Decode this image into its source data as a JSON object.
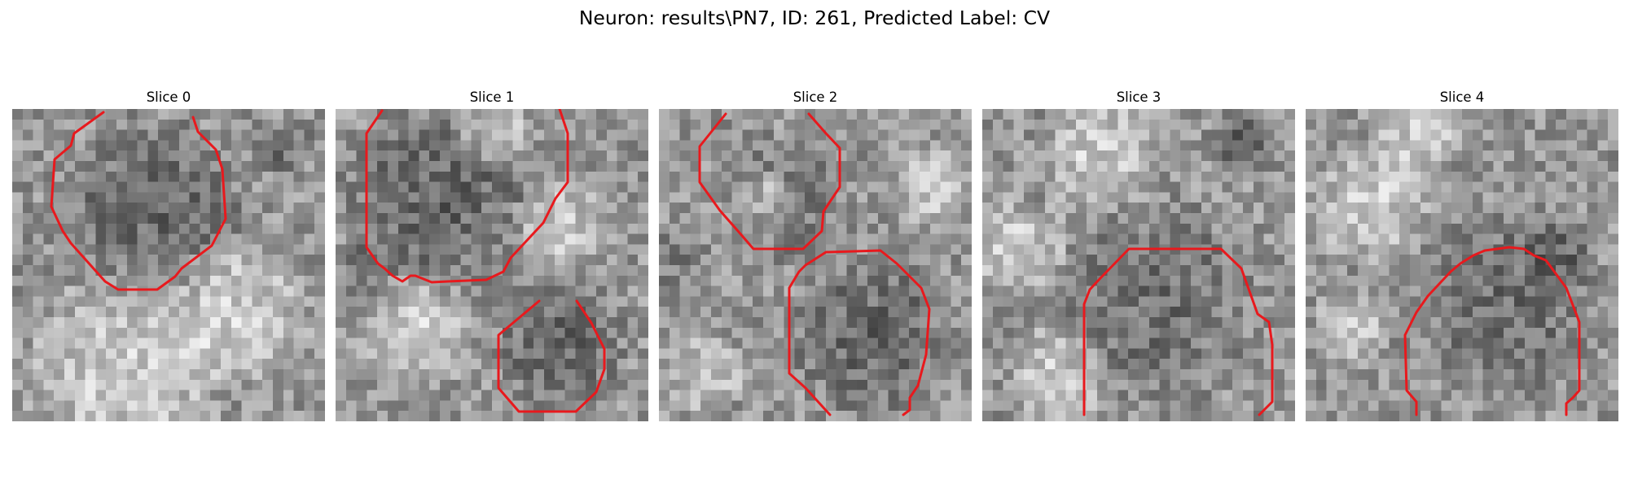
{
  "figure": {
    "title": "Neuron: results\\PN7, ID: 261, Predicted Label: CV"
  },
  "panels": [
    {
      "title": "Slice 0"
    },
    {
      "title": "Slice 1"
    },
    {
      "title": "Slice 2"
    },
    {
      "title": "Slice 3"
    },
    {
      "title": "Slice 4"
    }
  ],
  "colors": {
    "contour": "#e8191d",
    "background": "#ffffff"
  }
}
